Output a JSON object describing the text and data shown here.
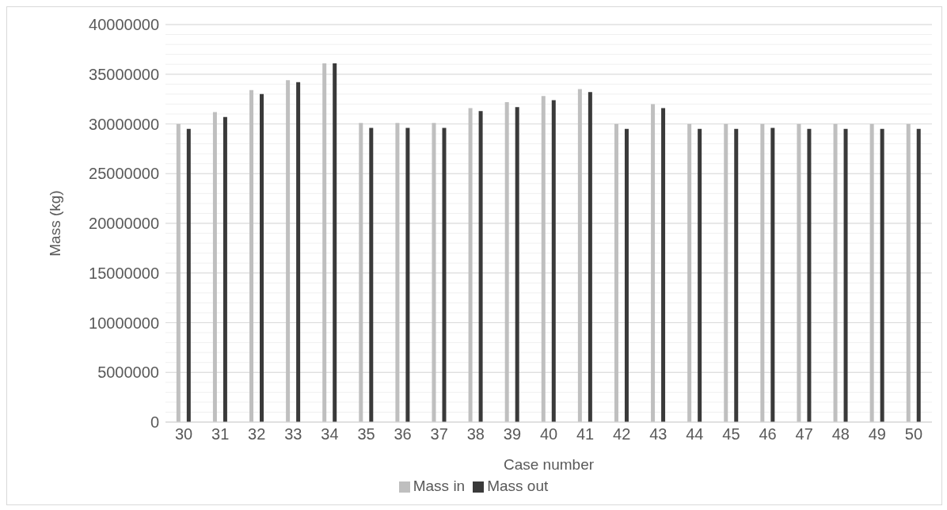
{
  "chart_data": {
    "type": "bar",
    "xlabel": "Case number",
    "ylabel": "Mass (kg)",
    "categories": [
      "30",
      "31",
      "32",
      "33",
      "34",
      "35",
      "36",
      "37",
      "38",
      "39",
      "40",
      "41",
      "42",
      "43",
      "44",
      "45",
      "46",
      "47",
      "48",
      "49",
      "50"
    ],
    "series": [
      {
        "name": "Mass in",
        "color": "#bfbfbf",
        "values": [
          30000000,
          31200000,
          33400000,
          34400000,
          36100000,
          30100000,
          30100000,
          30100000,
          31600000,
          32200000,
          32800000,
          33500000,
          30000000,
          32000000,
          30000000,
          30000000,
          30000000,
          30000000,
          30000000,
          30000000,
          30000000
        ]
      },
      {
        "name": "Mass out",
        "color": "#3a3a3a",
        "values": [
          29500000,
          30700000,
          33000000,
          34200000,
          36100000,
          29600000,
          29600000,
          29600000,
          31300000,
          31700000,
          32400000,
          33200000,
          29500000,
          31600000,
          29500000,
          29500000,
          29600000,
          29500000,
          29500000,
          29500000,
          29500000
        ]
      }
    ],
    "ylim": [
      0,
      40000000
    ],
    "yticks": [
      0,
      5000000,
      10000000,
      15000000,
      20000000,
      25000000,
      30000000,
      35000000,
      40000000
    ],
    "grid": "y",
    "legend": "bottom"
  }
}
